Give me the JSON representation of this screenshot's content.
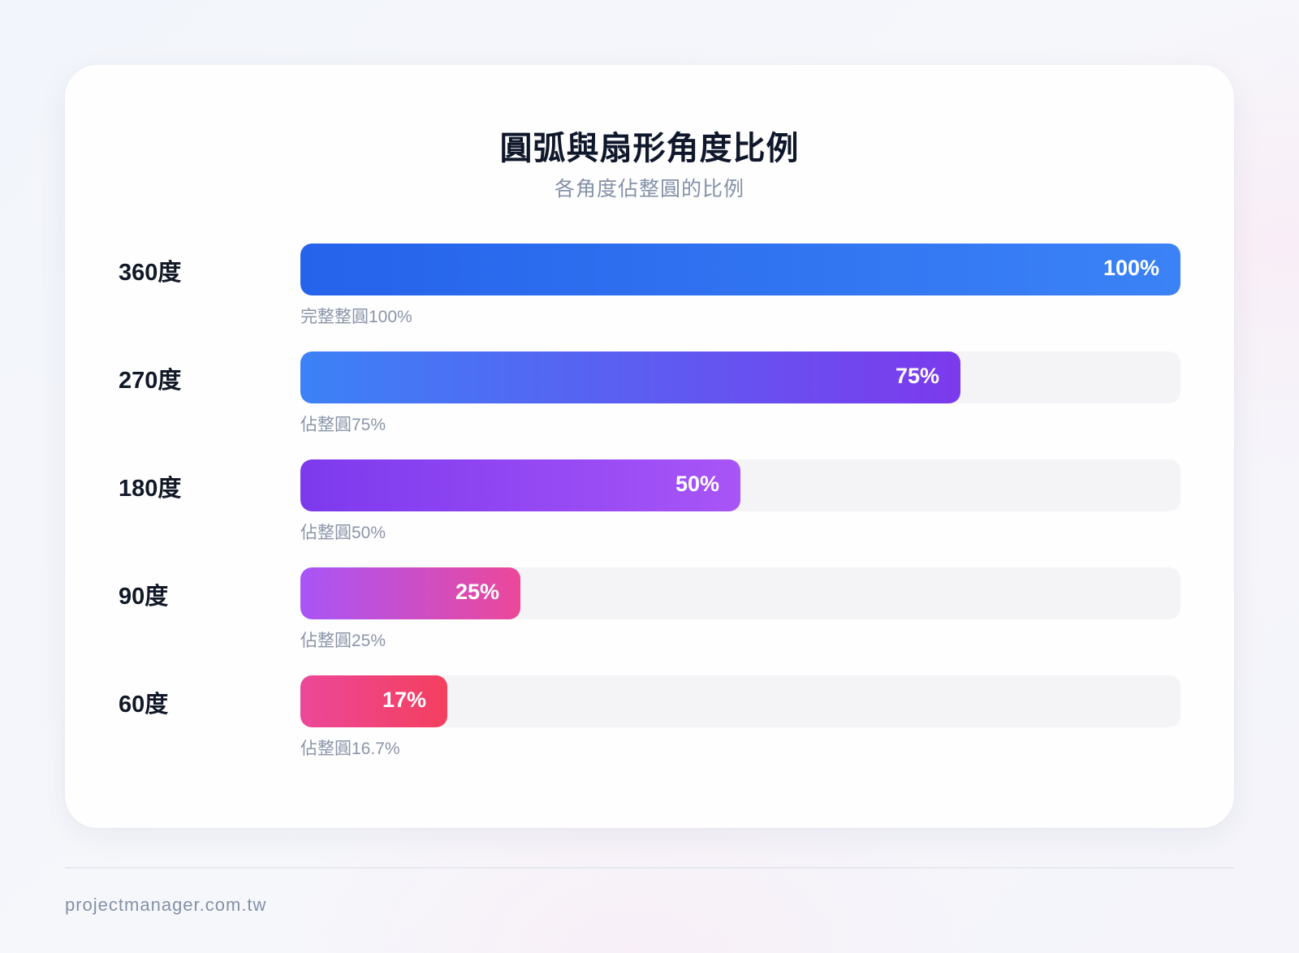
{
  "chart_data": {
    "type": "bar",
    "orientation": "horizontal",
    "title": "圓弧與扇形角度比例",
    "subtitle": "各角度佔整圓的比例",
    "categories": [
      "360度",
      "270度",
      "180度",
      "90度",
      "60度"
    ],
    "values": [
      100,
      75,
      50,
      25,
      16.7
    ],
    "value_labels": [
      "100%",
      "75%",
      "50%",
      "25%",
      "17%"
    ],
    "notes": [
      "完整整圓100%",
      "佔整圓75%",
      "佔整圓50%",
      "佔整圓25%",
      "佔整圓16.7%"
    ],
    "xlim": [
      0,
      100
    ],
    "grid": false,
    "bar_gradients": [
      [
        "#2563eb",
        "#3b82f6"
      ],
      [
        "#3b82f6",
        "#7c3aed"
      ],
      [
        "#7c3aed",
        "#a855f7"
      ],
      [
        "#a855f7",
        "#ec4899"
      ],
      [
        "#ec4899",
        "#f43f5e"
      ]
    ],
    "track_color": "#f4f4f6"
  },
  "footer": {
    "text": "projectmanager.com.tw"
  }
}
